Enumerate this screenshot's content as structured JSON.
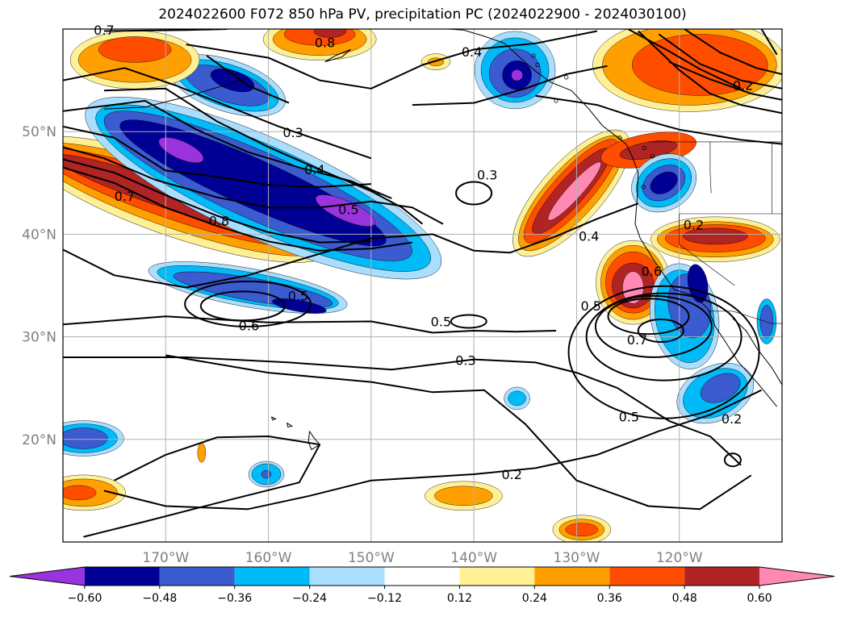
{
  "title": "2024022600 F072 850 hPa PV, precipitation PC (2024022900 - 2024030100)",
  "map": {
    "lon_range": [
      -180,
      -110
    ],
    "lat_range": [
      10,
      60
    ],
    "lon_ticks": [
      {
        "value": -170,
        "label": "170°W"
      },
      {
        "value": -160,
        "label": "160°W"
      },
      {
        "value": -150,
        "label": "150°W"
      },
      {
        "value": -140,
        "label": "140°W"
      },
      {
        "value": -130,
        "label": "130°W"
      },
      {
        "value": -120,
        "label": "120°W"
      }
    ],
    "lat_ticks": [
      {
        "value": 50,
        "label": "50°N"
      },
      {
        "value": 40,
        "label": "40°N"
      },
      {
        "value": 30,
        "label": "30°N"
      },
      {
        "value": 20,
        "label": "20°N"
      }
    ],
    "grid": true,
    "contour_labels": [
      {
        "text": "0.7",
        "lon": -174,
        "lat": 43.6
      },
      {
        "text": "0.8",
        "lon": -164.8,
        "lat": 41.2
      },
      {
        "text": "0.3",
        "lon": -157.6,
        "lat": 49.8
      },
      {
        "text": "0.4",
        "lon": -155.5,
        "lat": 46.2
      },
      {
        "text": "0.5",
        "lon": -152.2,
        "lat": 42.3
      },
      {
        "text": "0.5",
        "lon": -157.1,
        "lat": 33.9
      },
      {
        "text": "0.6",
        "lon": -161.9,
        "lat": 31
      },
      {
        "text": "0.4",
        "lon": -140.2,
        "lat": 57.7
      },
      {
        "text": "0.3",
        "lon": -138.7,
        "lat": 45.7
      },
      {
        "text": "0.5",
        "lon": -143.2,
        "lat": 31.4
      },
      {
        "text": "0.3",
        "lon": -140.8,
        "lat": 27.6
      },
      {
        "text": "0.4",
        "lon": -128.8,
        "lat": 39.7
      },
      {
        "text": "0.2",
        "lon": -118.6,
        "lat": 40.8
      },
      {
        "text": "0.6",
        "lon": -122.7,
        "lat": 36.3
      },
      {
        "text": "0.5",
        "lon": -128.6,
        "lat": 32.9
      },
      {
        "text": "0.7",
        "lon": -124.1,
        "lat": 29.6
      },
      {
        "text": "0.5",
        "lon": -124.9,
        "lat": 22.1
      },
      {
        "text": "0.2",
        "lon": -136.3,
        "lat": 16.5
      },
      {
        "text": "0.2",
        "lon": -114.9,
        "lat": 21.9
      },
      {
        "text": "0.2",
        "lon": -113.8,
        "lat": 54.4
      },
      {
        "text": "0.7",
        "lon": -176,
        "lat": 59.8
      },
      {
        "text": "0.8",
        "lon": -154.5,
        "lat": 58.6
      }
    ]
  },
  "colorbar": {
    "levels": [
      "-0.60",
      "-0.48",
      "-0.36",
      "-0.24",
      "-0.12",
      "0.12",
      "0.24",
      "0.36",
      "0.48",
      "0.60"
    ],
    "colors": [
      "#9933dd",
      "#000095",
      "#3b5bd1",
      "#00bbf8",
      "#aadeff",
      "#ffffff",
      "#fff095",
      "#ffa000",
      "#ff4d00",
      "#b02424",
      "#ff89b3"
    ]
  }
}
